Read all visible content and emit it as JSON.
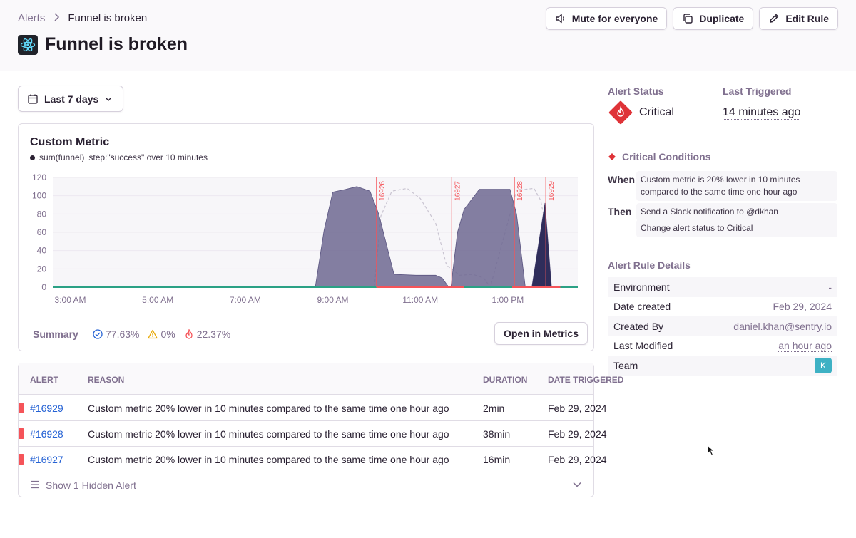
{
  "breadcrumb": {
    "parent": "Alerts",
    "current": "Funnel is broken"
  },
  "page": {
    "title": "Funnel is broken",
    "project_icon": "react-atom-icon"
  },
  "header_actions": {
    "mute": "Mute for everyone",
    "duplicate": "Duplicate",
    "edit": "Edit Rule"
  },
  "date_filter": {
    "label": "Last 7 days"
  },
  "chart": {
    "title": "Custom Metric",
    "legend_metric": "sum(funnel)",
    "legend_query": "step:\"success\" over 10 minutes",
    "chart_data": {
      "type": "area",
      "title": "Custom Metric",
      "y_ticks": [
        "0",
        "20",
        "40",
        "60",
        "80",
        "100",
        "120"
      ],
      "ylim": [
        0,
        120
      ],
      "x_ticks": [
        "3:00 AM",
        "5:00 AM",
        "7:00 AM",
        "9:00 AM",
        "11:00 AM",
        "1:00 PM"
      ],
      "series": [
        {
          "name": "sum(funnel)",
          "color": "#6e6892",
          "points": [
            [
              0,
              0
            ],
            [
              0.6,
              0
            ],
            [
              0.62,
              62
            ],
            [
              0.64,
              104
            ],
            [
              0.67,
              107
            ],
            [
              0.695,
              110
            ],
            [
              0.725,
              105
            ],
            [
              0.745,
              80
            ],
            [
              0.78,
              14
            ],
            [
              0.83,
              13
            ],
            [
              0.875,
              13
            ],
            [
              0.89,
              10
            ],
            [
              0.905,
              0
            ],
            [
              0.91,
              0
            ],
            [
              0.925,
              60
            ],
            [
              0.94,
              85
            ],
            [
              0.975,
              107
            ],
            [
              1.045,
              107
            ],
            [
              1.06,
              80
            ],
            [
              1.08,
              0
            ],
            [
              1.095,
              0
            ],
            [
              1.125,
              92
            ],
            [
              1.14,
              0
            ],
            [
              1.2,
              0
            ]
          ]
        }
      ],
      "series_comparison": {
        "name": "comparison",
        "color": "#c9c4d1",
        "dashed": true,
        "points": [
          [
            0.735,
            0
          ],
          [
            0.75,
            78
          ],
          [
            0.775,
            105
          ],
          [
            0.81,
            108
          ],
          [
            0.84,
            97
          ],
          [
            0.875,
            70
          ],
          [
            0.9,
            24
          ],
          [
            0.93,
            13
          ],
          [
            0.96,
            14
          ],
          [
            0.985,
            10
          ],
          [
            1.0,
            0
          ],
          [
            1.06,
            106
          ],
          [
            1.1,
            108
          ],
          [
            1.115,
            95
          ],
          [
            1.13,
            60
          ]
        ]
      },
      "incidents": [
        {
          "label": "16926",
          "x": 0.74
        },
        {
          "label": "16927",
          "x": 0.912
        },
        {
          "label": "16928",
          "x": 1.055
        },
        {
          "label": "16929",
          "x": 1.127
        }
      ],
      "status_band": [
        {
          "from": 0,
          "to": 0.74,
          "color": "#2ba185"
        },
        {
          "from": 0.74,
          "to": 0.94,
          "color": "#f55459"
        },
        {
          "from": 0.94,
          "to": 1.05,
          "color": "#2ba185"
        },
        {
          "from": 1.05,
          "to": 1.16,
          "color": "#f55459"
        },
        {
          "from": 1.16,
          "to": 1.2,
          "color": "#2ba185"
        }
      ]
    },
    "summary": {
      "label": "Summary",
      "resolved": "77.63%",
      "warning": "0%",
      "critical": "22.37%"
    },
    "open_metrics": "Open in Metrics"
  },
  "alerts_table": {
    "columns": {
      "alert": "ALERT",
      "reason": "REASON",
      "duration": "DURATION",
      "date": "DATE TRIGGERED"
    },
    "rows": [
      {
        "id": "#16929",
        "reason": "Custom metric 20% lower in 10 minutes compared to the same time one hour ago",
        "duration": "2min",
        "date": "Feb 29, 2024"
      },
      {
        "id": "#16928",
        "reason": "Custom metric 20% lower in 10 minutes compared to the same time one hour ago",
        "duration": "38min",
        "date": "Feb 29, 2024"
      },
      {
        "id": "#16927",
        "reason": "Custom metric 20% lower in 10 minutes compared to the same time one hour ago",
        "duration": "16min",
        "date": "Feb 29, 2024"
      }
    ],
    "show_hidden": "Show 1 Hidden Alert"
  },
  "sidebar": {
    "status_label": "Alert Status",
    "status_value": "Critical",
    "last_triggered_label": "Last Triggered",
    "last_triggered_value": "14 minutes ago",
    "conditions_title": "Critical Conditions",
    "when_label": "When",
    "when_text": "Custom metric is 20% lower in 10 minutes compared to the same time one hour ago",
    "then_label": "Then",
    "then_actions": [
      "Send a Slack notification to @dkhan",
      "Change alert status to Critical"
    ],
    "details_title": "Alert Rule Details",
    "details": [
      {
        "key": "Environment",
        "value": "-"
      },
      {
        "key": "Date created",
        "value": "Feb 29, 2024"
      },
      {
        "key": "Created By",
        "value": "daniel.khan@sentry.io"
      },
      {
        "key": "Last Modified",
        "value": "an hour ago"
      },
      {
        "key": "Team",
        "value": "K"
      }
    ]
  },
  "colors": {
    "critical": "#f55459",
    "accent": "#6c5fc7",
    "link": "#2562d4",
    "resolved": "#2ba185"
  }
}
